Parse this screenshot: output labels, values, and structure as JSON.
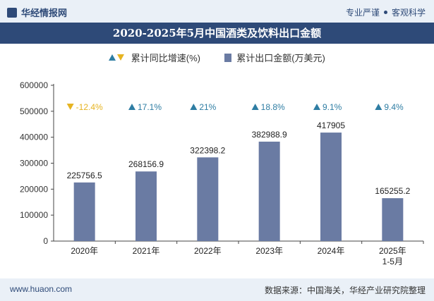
{
  "header": {
    "brand": "华经情报网",
    "tagline_left": "专业严谨",
    "tagline_right": "客观科学"
  },
  "chart_data": {
    "type": "bar",
    "title": "2020-2025年5月中国酒类及饮料出口金额",
    "categories": [
      "2020年",
      "2021年",
      "2022年",
      "2023年",
      "2024年",
      "2025年\n1-5月"
    ],
    "series": [
      {
        "name": "累计出口金额(万美元)",
        "values": [
          225756.5,
          268156.9,
          322398.2,
          382988.9,
          417905,
          165255.2
        ]
      },
      {
        "name": "累计同比增速(%)",
        "values": [
          -12.4,
          17.1,
          21,
          18.8,
          9.1,
          9.4
        ]
      }
    ],
    "growth_labels": [
      "-12.4%",
      "17.1%",
      "21%",
      "18.8%",
      "9.1%",
      "9.4%"
    ],
    "value_labels": [
      "225756.5",
      "268156.9",
      "322398.2",
      "382988.9",
      "417905",
      "165255.2"
    ],
    "y_ticks": [
      "0",
      "100000",
      "200000",
      "300000",
      "400000",
      "500000",
      "600000"
    ],
    "ylim": [
      0,
      600000
    ],
    "bar_color": "#6a7ba3",
    "up_color": "#2e7da3",
    "down_color": "#e6b422",
    "grid": false
  },
  "footer": {
    "website": "www.huaon.com",
    "source": "数据来源：中国海关，华经产业研究院整理"
  }
}
